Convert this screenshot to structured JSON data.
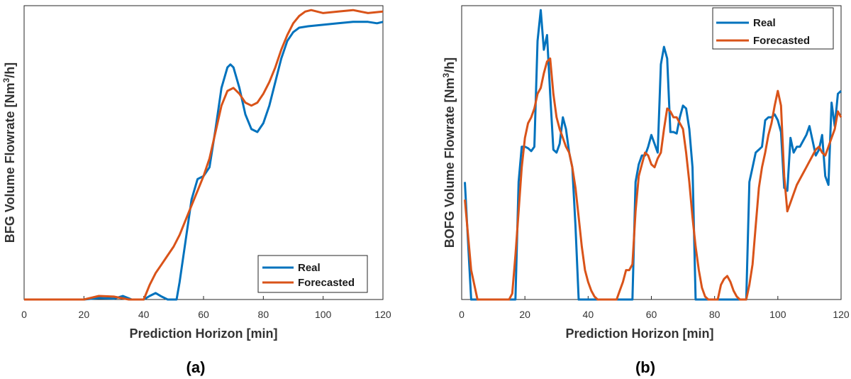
{
  "chart_data": [
    {
      "type": "line",
      "panel_label": "(a)",
      "xlabel": "Prediction Horizon [min]",
      "ylabel_main": "BFG Volume Flowrate [Nm",
      "ylabel_sup": "3",
      "ylabel_end": "/h]",
      "xlim": [
        0,
        120
      ],
      "ylim": [
        0,
        1
      ],
      "xticks": [
        "0",
        "20",
        "40",
        "60",
        "80",
        "100",
        "120"
      ],
      "legend_position": "bottom-right",
      "series": [
        {
          "name": "Real",
          "color": "#0072BD",
          "x": [
            0,
            10,
            20,
            25,
            30,
            33,
            36,
            40,
            42,
            44,
            46,
            48,
            51,
            52,
            54,
            56,
            58,
            60,
            62,
            64,
            66,
            68,
            69,
            70,
            72,
            74,
            76,
            78,
            80,
            82,
            84,
            86,
            88,
            90,
            92,
            95,
            100,
            105,
            110,
            115,
            118,
            120
          ],
          "y": [
            0,
            0,
            0,
            0.005,
            0.003,
            0.012,
            0,
            0,
            0.012,
            0.022,
            0.01,
            0,
            0,
            0.06,
            0.2,
            0.34,
            0.41,
            0.42,
            0.45,
            0.58,
            0.72,
            0.79,
            0.8,
            0.79,
            0.72,
            0.63,
            0.58,
            0.57,
            0.6,
            0.66,
            0.74,
            0.82,
            0.88,
            0.91,
            0.925,
            0.93,
            0.935,
            0.94,
            0.945,
            0.945,
            0.94,
            0.945
          ]
        },
        {
          "name": "Forecasted",
          "color": "#D95319",
          "x": [
            0,
            10,
            20,
            25,
            30,
            35,
            40,
            42,
            44,
            46,
            48,
            50,
            52,
            54,
            56,
            58,
            60,
            62,
            64,
            66,
            68,
            70,
            72,
            74,
            76,
            78,
            80,
            82,
            84,
            86,
            88,
            90,
            92,
            94,
            96,
            100,
            105,
            110,
            115,
            120
          ],
          "y": [
            0,
            0,
            0,
            0.012,
            0.01,
            0,
            0,
            0.05,
            0.09,
            0.12,
            0.15,
            0.18,
            0.22,
            0.27,
            0.32,
            0.37,
            0.42,
            0.48,
            0.57,
            0.66,
            0.71,
            0.72,
            0.7,
            0.67,
            0.66,
            0.67,
            0.7,
            0.74,
            0.79,
            0.85,
            0.9,
            0.94,
            0.965,
            0.98,
            0.985,
            0.975,
            0.98,
            0.985,
            0.975,
            0.98
          ]
        }
      ]
    },
    {
      "type": "line",
      "panel_label": "(b)",
      "xlabel": "Prediction Horizon [min]",
      "ylabel_main": "BOFG Volume Flowrate [Nm",
      "ylabel_sup": "3",
      "ylabel_end": "/h]",
      "xlim": [
        0,
        120
      ],
      "ylim": [
        0,
        1
      ],
      "xticks": [
        "0",
        "20",
        "40",
        "60",
        "80",
        "100",
        "120"
      ],
      "legend_position": "top-right",
      "series": [
        {
          "name": "Real",
          "color": "#0072BD",
          "x": [
            1,
            2,
            3,
            4,
            5,
            6,
            7,
            8,
            9,
            10,
            11,
            12,
            13,
            14,
            15,
            16,
            17,
            18,
            19,
            20,
            21,
            22,
            23,
            24,
            25,
            26,
            27,
            28,
            29,
            30,
            31,
            32,
            33,
            34,
            35,
            36,
            37,
            38,
            39,
            40,
            41,
            42,
            43,
            44,
            45,
            46,
            47,
            48,
            49,
            50,
            51,
            52,
            53,
            54,
            55,
            56,
            57,
            58,
            59,
            60,
            61,
            62,
            63,
            64,
            65,
            66,
            67,
            68,
            69,
            70,
            71,
            72,
            73,
            74,
            75,
            76,
            77,
            78,
            79,
            80,
            81,
            82,
            83,
            84,
            85,
            86,
            87,
            88,
            89,
            90,
            91,
            92,
            93,
            94,
            95,
            96,
            97,
            98,
            99,
            100,
            101,
            102,
            103,
            104,
            105,
            106,
            107,
            108,
            109,
            110,
            111,
            112,
            113,
            114,
            115,
            116,
            117,
            118,
            119,
            120
          ],
          "y": [
            0.4,
            0.2,
            0,
            0,
            0,
            0,
            0,
            0,
            0,
            0,
            0,
            0,
            0,
            0,
            0,
            0,
            0,
            0.4,
            0.52,
            0.52,
            0.515,
            0.505,
            0.52,
            0.88,
            0.985,
            0.85,
            0.9,
            0.7,
            0.51,
            0.5,
            0.53,
            0.62,
            0.58,
            0.5,
            0.45,
            0.25,
            0,
            0,
            0,
            0,
            0,
            0,
            0,
            0,
            0,
            0,
            0,
            0,
            0,
            0,
            0,
            0,
            0,
            0,
            0.4,
            0.46,
            0.49,
            0.49,
            0.52,
            0.56,
            0.53,
            0.5,
            0.8,
            0.86,
            0.82,
            0.57,
            0.57,
            0.565,
            0.62,
            0.66,
            0.65,
            0.58,
            0.45,
            0,
            0,
            0,
            0,
            0,
            0,
            0,
            0,
            0,
            0,
            0,
            0,
            0,
            0,
            0,
            0,
            0,
            0.4,
            0.45,
            0.5,
            0.51,
            0.52,
            0.61,
            0.62,
            0.62,
            0.63,
            0.61,
            0.57,
            0.38,
            0.37,
            0.55,
            0.5,
            0.52,
            0.52,
            0.54,
            0.56,
            0.59,
            0.54,
            0.49,
            0.51,
            0.56,
            0.42,
            0.39,
            0.67,
            0.59,
            0.7,
            0.71
          ]
        },
        {
          "name": "Forecasted",
          "color": "#D95319",
          "x": [
            1,
            3,
            5,
            7,
            9,
            11,
            13,
            15,
            16,
            17,
            18,
            19,
            20,
            21,
            22,
            23,
            24,
            25,
            26,
            27,
            28,
            29,
            30,
            31,
            32,
            33,
            34,
            35,
            36,
            37,
            38,
            39,
            40,
            41,
            42,
            43,
            44,
            45,
            46,
            47,
            48,
            49,
            50,
            51,
            52,
            53,
            54,
            55,
            56,
            57,
            58,
            59,
            60,
            61,
            62,
            63,
            64,
            65,
            66,
            67,
            68,
            69,
            70,
            71,
            72,
            73,
            74,
            75,
            76,
            77,
            78,
            79,
            80,
            81,
            82,
            83,
            84,
            85,
            86,
            87,
            88,
            89,
            90,
            91,
            92,
            93,
            94,
            95,
            96,
            97,
            98,
            99,
            100,
            101,
            102,
            103,
            104,
            105,
            106,
            107,
            108,
            109,
            110,
            111,
            112,
            113,
            114,
            115,
            116,
            117,
            118,
            119,
            120
          ],
          "y": [
            0.34,
            0.1,
            0,
            0,
            0,
            0,
            0,
            0,
            0.02,
            0.15,
            0.3,
            0.45,
            0.55,
            0.6,
            0.62,
            0.65,
            0.7,
            0.72,
            0.77,
            0.81,
            0.82,
            0.7,
            0.62,
            0.58,
            0.55,
            0.52,
            0.5,
            0.45,
            0.38,
            0.28,
            0.18,
            0.1,
            0.06,
            0.03,
            0.01,
            0,
            0,
            0,
            0,
            0,
            0,
            0,
            0.03,
            0.06,
            0.1,
            0.1,
            0.12,
            0.3,
            0.42,
            0.46,
            0.5,
            0.49,
            0.46,
            0.45,
            0.48,
            0.5,
            0.58,
            0.65,
            0.64,
            0.62,
            0.62,
            0.6,
            0.58,
            0.5,
            0.4,
            0.28,
            0.18,
            0.1,
            0.04,
            0.01,
            0,
            0,
            0,
            0,
            0.05,
            0.07,
            0.08,
            0.06,
            0.03,
            0.01,
            0,
            0,
            0,
            0.05,
            0.12,
            0.25,
            0.38,
            0.45,
            0.5,
            0.56,
            0.6,
            0.66,
            0.71,
            0.66,
            0.42,
            0.3,
            0.33,
            0.36,
            0.39,
            0.41,
            0.43,
            0.45,
            0.47,
            0.49,
            0.51,
            0.52,
            0.5,
            0.49,
            0.52,
            0.55,
            0.58,
            0.64,
            0.62
          ]
        }
      ]
    }
  ]
}
